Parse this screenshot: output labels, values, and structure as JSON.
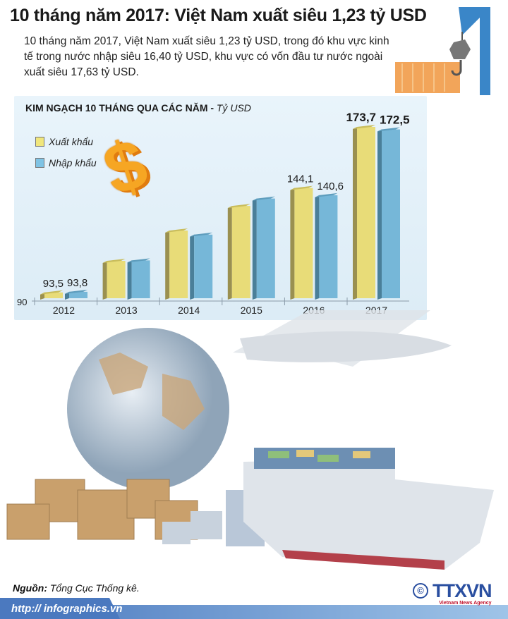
{
  "title": "10 tháng năm 2017: Việt Nam xuất siêu 1,23 tỷ USD",
  "description": "10 tháng năm 2017, Việt Nam  xuất siêu 1,23 tỷ USD, trong đó khu vực kinh tế trong nước nhập siêu 16,40 tỷ USD, khu vực có vốn đầu tư nước ngoài xuất siêu 17,63 tỷ USD.",
  "chart_data": {
    "type": "bar",
    "title": "KIM NGẠCH 10 THÁNG QUA CÁC NĂM - ",
    "unit": "Tỷ USD",
    "categories": [
      "2012",
      "2013",
      "2014",
      "2015",
      "2016",
      "2017"
    ],
    "ylim": [
      90,
      180
    ],
    "y_tick_labels": [
      "90"
    ],
    "grid": false,
    "legend_placement": "top-left",
    "series": [
      {
        "name": "Xuất khẩu",
        "color": "#e8dc78",
        "values": [
          93.5,
          108.8,
          123.5,
          135.4,
          144.1,
          173.7
        ],
        "labels": [
          "93,5",
          "",
          "",
          "",
          "144,1",
          "173,7"
        ]
      },
      {
        "name": "Nhập khẩu",
        "color": "#76b7d8",
        "values": [
          93.8,
          109.0,
          121.5,
          139.0,
          140.6,
          172.5
        ],
        "labels": [
          "93,8",
          "",
          "",
          "",
          "140,6",
          "172,5"
        ]
      }
    ]
  },
  "footer": {
    "source_label": "Nguồn:",
    "source": "Tổng Cục Thống kê.",
    "url": "http:// infographics.vn",
    "logo_text": "TTXVN",
    "logo_subtitle": "Vietnam News Agency",
    "copyright": "©"
  }
}
